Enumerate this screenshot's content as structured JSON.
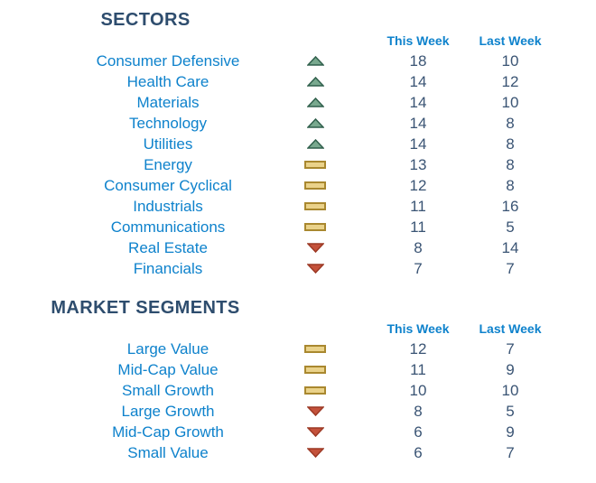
{
  "colors": {
    "title_navy": "#2E4D6E",
    "link_blue": "#0E82CC",
    "value_slate": "#3A5474",
    "up_fill": "#79A98F",
    "up_border": "#2F5F4B",
    "flat_fill": "#EAD28A",
    "flat_border": "#A9882F",
    "down_fill": "#C4523B",
    "down_border": "#9C3824",
    "background": "#FFFFFF"
  },
  "columns": {
    "this_week": "This Week",
    "last_week": "Last Week"
  },
  "sections": [
    {
      "title": "SECTORS",
      "rows": [
        {
          "label": "Consumer Defensive",
          "trend": "up",
          "trend_icon": "triangle-up-icon",
          "this_week": "18",
          "last_week": "10"
        },
        {
          "label": "Health Care",
          "trend": "up",
          "trend_icon": "triangle-up-icon",
          "this_week": "14",
          "last_week": "12"
        },
        {
          "label": "Materials",
          "trend": "up",
          "trend_icon": "triangle-up-icon",
          "this_week": "14",
          "last_week": "10"
        },
        {
          "label": "Technology",
          "trend": "up",
          "trend_icon": "triangle-up-icon",
          "this_week": "14",
          "last_week": "8"
        },
        {
          "label": "Utilities",
          "trend": "up",
          "trend_icon": "triangle-up-icon",
          "this_week": "14",
          "last_week": "8"
        },
        {
          "label": "Energy",
          "trend": "flat",
          "trend_icon": "dash-flat-icon",
          "this_week": "13",
          "last_week": "8"
        },
        {
          "label": "Consumer Cyclical",
          "trend": "flat",
          "trend_icon": "dash-flat-icon",
          "this_week": "12",
          "last_week": "8"
        },
        {
          "label": "Industrials",
          "trend": "flat",
          "trend_icon": "dash-flat-icon",
          "this_week": "11",
          "last_week": "16"
        },
        {
          "label": "Communications",
          "trend": "flat",
          "trend_icon": "dash-flat-icon",
          "this_week": "11",
          "last_week": "5"
        },
        {
          "label": "Real Estate",
          "trend": "down",
          "trend_icon": "triangle-down-icon",
          "this_week": "8",
          "last_week": "14"
        },
        {
          "label": "Financials",
          "trend": "down",
          "trend_icon": "triangle-down-icon",
          "this_week": "7",
          "last_week": "7"
        }
      ]
    },
    {
      "title": "MARKET SEGMENTS",
      "rows": [
        {
          "label": "Large Value",
          "trend": "flat",
          "trend_icon": "dash-flat-icon",
          "this_week": "12",
          "last_week": "7"
        },
        {
          "label": "Mid-Cap Value",
          "trend": "flat",
          "trend_icon": "dash-flat-icon",
          "this_week": "11",
          "last_week": "9"
        },
        {
          "label": "Small Growth",
          "trend": "flat",
          "trend_icon": "dash-flat-icon",
          "this_week": "10",
          "last_week": "10"
        },
        {
          "label": "Large Growth",
          "trend": "down",
          "trend_icon": "triangle-down-icon",
          "this_week": "8",
          "last_week": "5"
        },
        {
          "label": "Mid-Cap Growth",
          "trend": "down",
          "trend_icon": "triangle-down-icon",
          "this_week": "6",
          "last_week": "9"
        },
        {
          "label": "Small Value",
          "trend": "down",
          "trend_icon": "triangle-down-icon",
          "this_week": "6",
          "last_week": "7"
        }
      ]
    }
  ]
}
